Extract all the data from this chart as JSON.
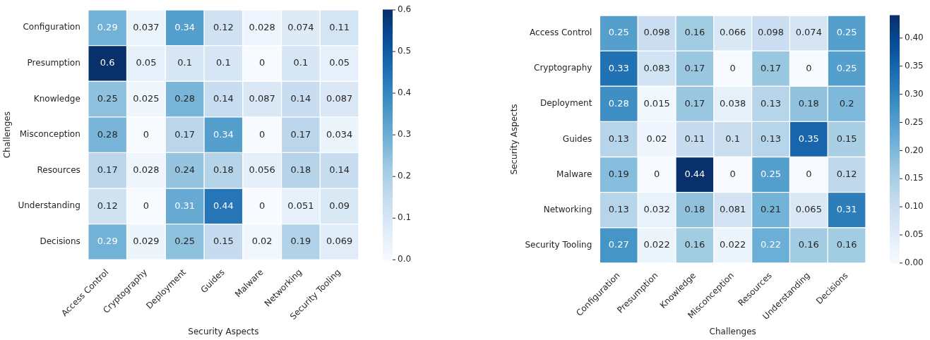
{
  "chart_data": [
    {
      "type": "heatmap",
      "xlabel": "Security Aspects",
      "ylabel": "Challenges",
      "categories": [
        "Access Control",
        "Cryptography",
        "Deployment",
        "Guides",
        "Malware",
        "Networking",
        "Security Tooling"
      ],
      "y_categories": [
        "Configuration",
        "Presumption",
        "Knowledge",
        "Misconception",
        "Resources",
        "Understanding",
        "Decisions"
      ],
      "cells": [
        [
          0.29,
          0.037,
          0.34,
          0.12,
          0.028,
          0.074,
          0.11
        ],
        [
          0.6,
          0.05,
          0.1,
          0.1,
          0,
          0.1,
          0.05
        ],
        [
          0.25,
          0.025,
          0.28,
          0.14,
          0.087,
          0.14,
          0.087
        ],
        [
          0.28,
          0,
          0.17,
          0.34,
          0,
          0.17,
          0.034
        ],
        [
          0.17,
          0.028,
          0.24,
          0.18,
          0.056,
          0.18,
          0.14
        ],
        [
          0.12,
          0,
          0.31,
          0.44,
          0,
          0.051,
          0.09
        ],
        [
          0.29,
          0.029,
          0.25,
          0.15,
          0.02,
          0.19,
          0.069
        ]
      ],
      "clim": [
        0,
        0.6
      ],
      "cticks": [
        {
          "value": 0,
          "label": "0.0"
        },
        0.1,
        0.2,
        0.3,
        0.4,
        0.5,
        0.6
      ],
      "data_labels": true
    },
    {
      "type": "heatmap",
      "xlabel": "Challenges",
      "ylabel": "Security Aspects",
      "categories": [
        "Configuration",
        "Presumption",
        "Knowledge",
        "Misconception",
        "Resources",
        "Understanding",
        "Decisions"
      ],
      "y_categories": [
        "Access Control",
        "Cryptography",
        "Deployment",
        "Guides",
        "Malware",
        "Networking",
        "Security Tooling"
      ],
      "cells": [
        [
          0.25,
          0.098,
          0.16,
          0.066,
          0.098,
          0.074,
          0.25
        ],
        [
          0.33,
          0.083,
          0.17,
          0,
          0.17,
          0,
          0.25
        ],
        [
          0.28,
          0.015,
          0.17,
          0.038,
          0.13,
          0.18,
          0.2
        ],
        [
          0.13,
          0.02,
          0.11,
          0.1,
          0.13,
          0.35,
          0.15
        ],
        [
          0.19,
          0,
          0.44,
          0,
          0.25,
          0,
          0.12
        ],
        [
          0.13,
          0.032,
          0.18,
          0.081,
          0.21,
          0.065,
          0.31
        ],
        [
          0.27,
          0.022,
          0.16,
          0.022,
          0.22,
          0.16,
          0.16
        ]
      ],
      "clim": [
        0,
        0.44
      ],
      "cticks": [
        {
          "value": 0,
          "label": "0.00"
        },
        0.05,
        {
          "value": 0.1,
          "label": "0.10"
        },
        0.15,
        {
          "value": 0.2,
          "label": "0.20"
        },
        0.25,
        {
          "value": 0.3,
          "label": "0.30"
        },
        0.35,
        {
          "value": 0.4,
          "label": "0.40"
        }
      ],
      "data_labels": true
    }
  ]
}
